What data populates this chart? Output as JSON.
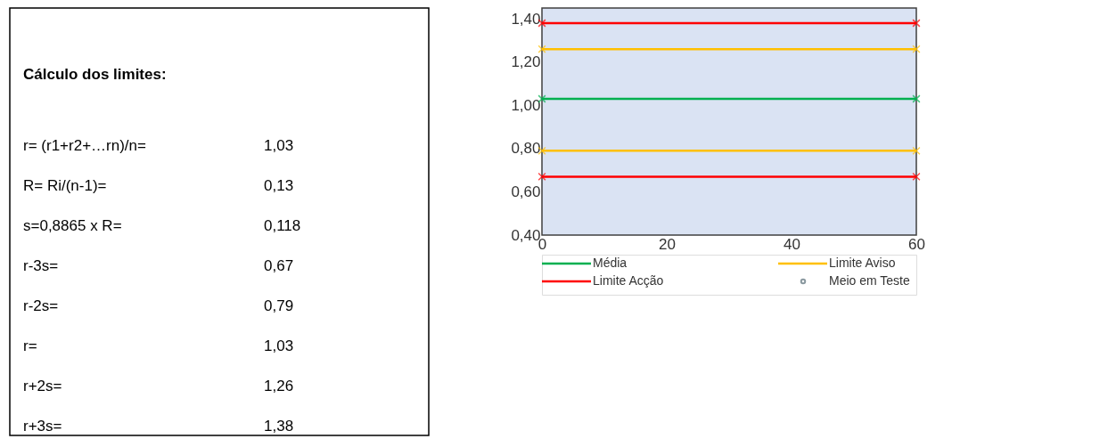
{
  "chart_data": [
    {
      "type": "other",
      "title": "Cálculo dos limites:",
      "annotations": [
        "r= (r1+r2+…rn)/n=",
        "1,03",
        "R= Ri/(n-1)=",
        "0,13",
        "s=0,8865 x R=",
        "0,118",
        "r-3s=",
        "0,67",
        "r-2s=",
        "0,79",
        "r=",
        "1,03",
        "r+2s=",
        "1,26",
        "r+3s=",
        "1,38"
      ]
    },
    {
      "type": "line",
      "xlim": [
        0,
        60
      ],
      "xticks": [
        0,
        20,
        40,
        60
      ],
      "ylim": [
        0.4,
        1.45
      ],
      "yticks": [
        {
          "value": 0.4,
          "label": "0,40"
        },
        {
          "value": 0.6,
          "label": "0,60"
        },
        {
          "value": 0.8,
          "label": "0,80"
        },
        {
          "value": 1.0,
          "label": "1,00"
        },
        {
          "value": 1.2,
          "label": "1,20"
        },
        {
          "value": 1.4,
          "label": "1,40"
        }
      ],
      "grid": false,
      "legend": "bottom",
      "marker": "cross",
      "line_style": "solid",
      "x": [
        0,
        60
      ],
      "series": [
        {
          "name": "Média",
          "color": "#00b050",
          "values": [
            1.03,
            1.03
          ]
        },
        {
          "name": "Limite Aviso",
          "color": "#ffc000",
          "values": [
            0.79,
            0.79
          ]
        },
        {
          "color": "#ffc000",
          "values": [
            1.26,
            1.26
          ]
        },
        {
          "name": "Limite Acção",
          "color": "#ff0000",
          "values": [
            0.67,
            0.67
          ]
        },
        {
          "color": "#ff0000",
          "values": [
            1.38,
            1.38
          ]
        },
        {
          "name": "Meio em Teste",
          "type": "scatter",
          "marker": "circle",
          "color": "#5a6e78",
          "values": [
            null,
            null
          ]
        }
      ]
    }
  ]
}
